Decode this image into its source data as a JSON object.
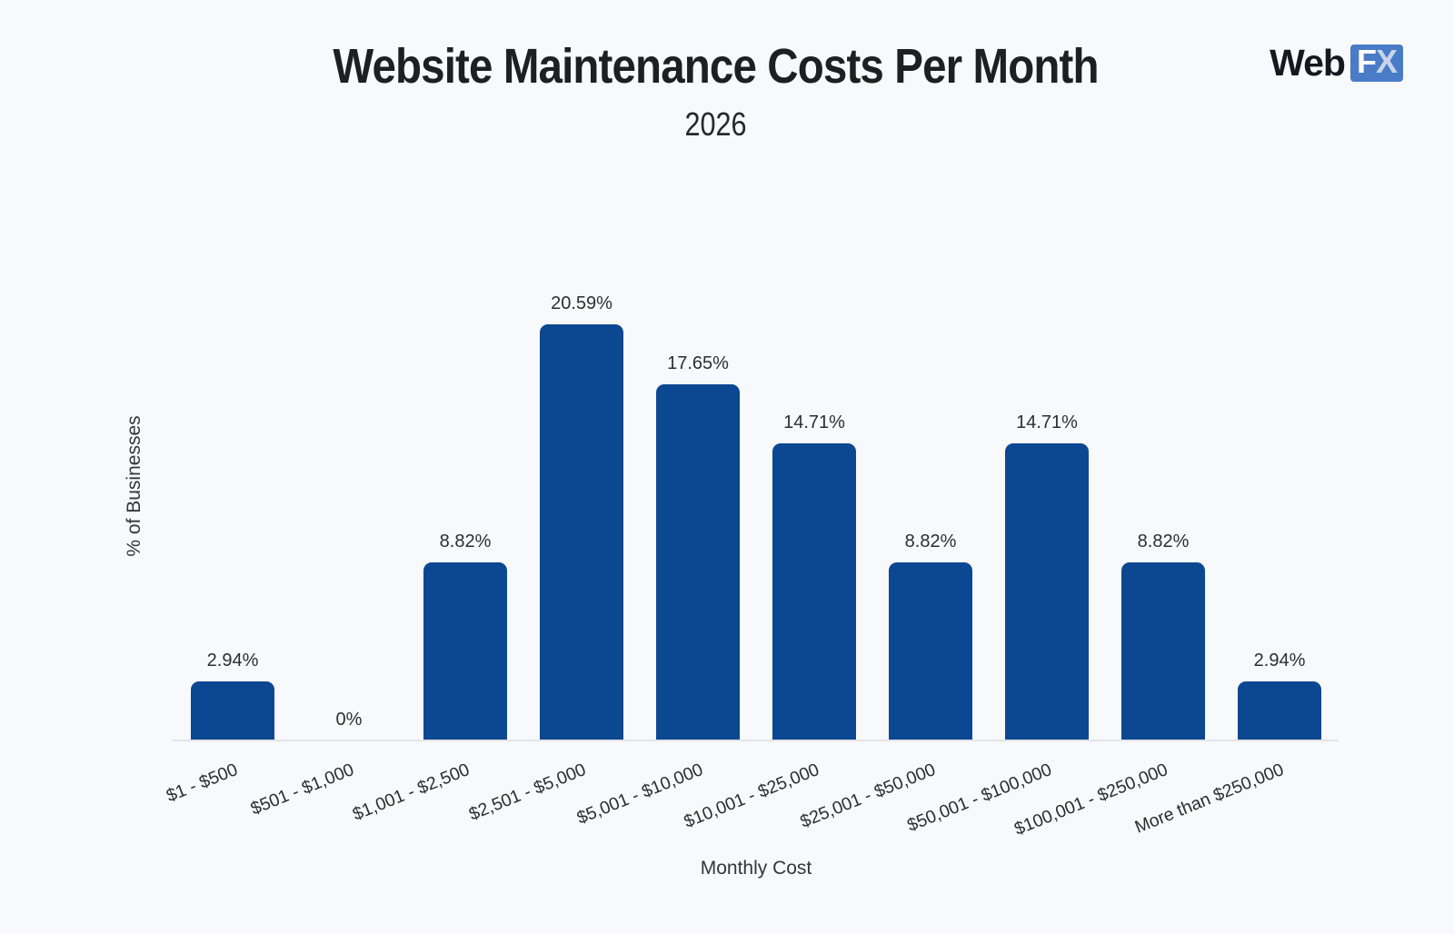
{
  "page": {
    "background": "#f8f9fc"
  },
  "logo": {
    "web": "Web",
    "f": "F",
    "x": "X",
    "badge_color": "#4a7bc6"
  },
  "chart_data": {
    "type": "bar",
    "title": "Website Maintenance Costs Per Month",
    "subtitle": "2026",
    "xlabel": "Monthly Cost",
    "ylabel": "% of Businesses",
    "categories": [
      "$1 - $500",
      "$501 - $1,000",
      "$1,001 - $2,500",
      "$2,501 - $5,000",
      "$5,001 - $10,000",
      "$10,001 - $25,000",
      "$25,001 - $50,000",
      "$50,001 - $100,000",
      "$100,001 - $250,000",
      "More than $250,000"
    ],
    "values": [
      2.94,
      0,
      8.82,
      20.59,
      17.65,
      14.71,
      8.82,
      14.71,
      8.82,
      2.94
    ],
    "value_labels": [
      "2.94%",
      "0%",
      "8.82%",
      "20.59%",
      "17.65%",
      "14.71%",
      "8.82%",
      "14.71%",
      "8.82%",
      "2.94%"
    ],
    "bar_color": "#0c4792",
    "ylim": [
      0,
      22
    ],
    "grid": false,
    "legend": "none",
    "tick_rotation_deg": -22
  }
}
